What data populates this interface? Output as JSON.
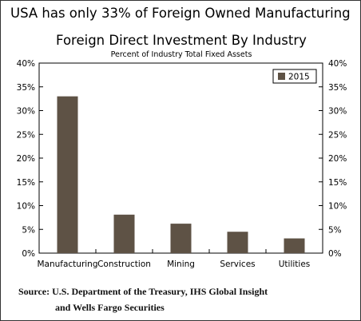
{
  "headline": "USA has only 33% of Foreign Owned Manufacturing",
  "source": {
    "line1": "Source:  U.S. Department of the Treasury, IHS Global Insight",
    "line2": "and Wells Fargo Securities"
  },
  "colors": {
    "bar": "#5e5245",
    "axis": "#000000",
    "border": "#333333"
  },
  "chart_data": {
    "type": "bar",
    "title": "Foreign Direct Investment By Industry",
    "subtitle": "Percent of Industry Total Fixed Assets",
    "xlabel": "",
    "ylabel": "",
    "categories": [
      "Manufacturing",
      "Construction",
      "Mining",
      "Services",
      "Utilities"
    ],
    "series": [
      {
        "name": "2015",
        "values": [
          33,
          8.1,
          6.2,
          4.5,
          3.1
        ]
      }
    ],
    "ylim": [
      0,
      40
    ],
    "yticks": [
      0,
      5,
      10,
      15,
      20,
      25,
      30,
      35,
      40
    ],
    "ytick_labels": [
      "0%",
      "5%",
      "10%",
      "15%",
      "20%",
      "25%",
      "30%",
      "35%",
      "40%"
    ],
    "right_axis_mirrored": true,
    "grid": false,
    "legend": {
      "position": "top-right",
      "entries": [
        "2015"
      ]
    }
  }
}
